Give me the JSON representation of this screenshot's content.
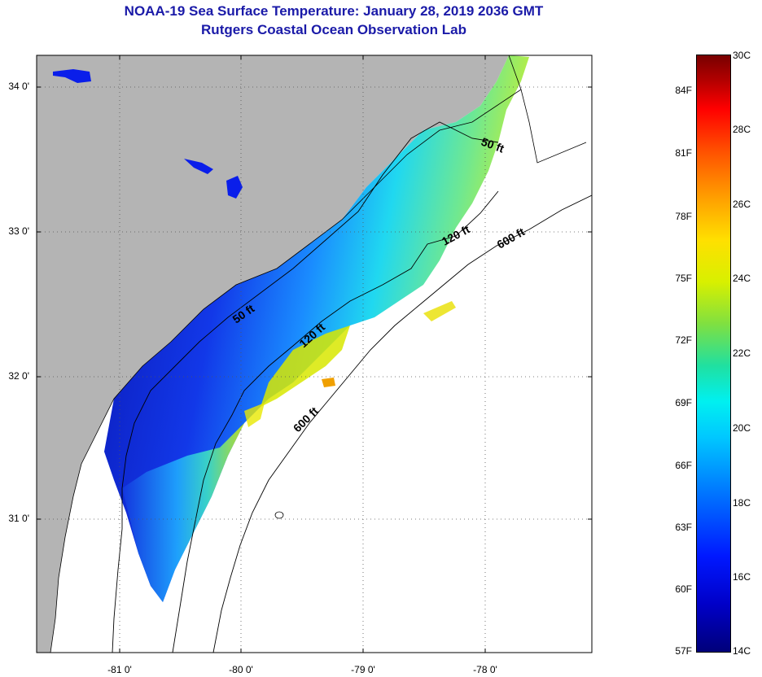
{
  "title": {
    "line1": "NOAA-19 Sea Surface Temperature:  January 28, 2019 2036 GMT",
    "line2": "Rutgers Coastal Ocean Observation Lab"
  },
  "map": {
    "lat_labels": [
      "34 0'",
      "33 0'",
      "32 0'",
      "31 0'"
    ],
    "lon_labels": [
      "-81 0'",
      "-80 0'",
      "-79 0'",
      "-78 0'"
    ],
    "contour_labels": [
      "50 ft",
      "50 ft",
      "120 ft",
      "120 ft",
      "600 ft",
      "600 ft"
    ],
    "colors": {
      "land": "#b4b4b4",
      "cloud_or_nodata": "#ffffff",
      "coldest": "#0a14a8",
      "warmest_shown": "#f0a000"
    }
  },
  "colorbar": {
    "fahrenheit": [
      "84F",
      "81F",
      "78F",
      "75F",
      "72F",
      "69F",
      "66F",
      "63F",
      "60F",
      "57F"
    ],
    "celsius": [
      "30C",
      "28C",
      "26C",
      "24C",
      "22C",
      "20C",
      "18C",
      "16C",
      "14C"
    ],
    "range_c": [
      14,
      30
    ]
  }
}
